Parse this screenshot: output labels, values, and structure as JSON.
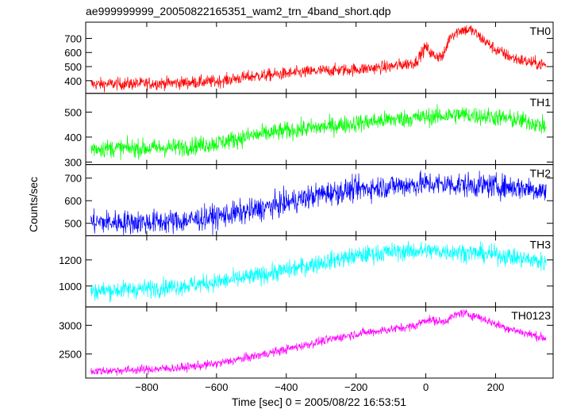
{
  "title": "ae999999999_20050822165351_wam2_trn_4band_short.qdp",
  "xlabel": "Time [sec] 0 = 2005/08/22 16:53:51",
  "ylabel": "Counts/sec",
  "chart_data": {
    "type": "line",
    "title": "ae999999999_20050822165351_wam2_trn_4band_short.qdp",
    "xlabel": "Time [sec] 0 = 2005/08/22 16:53:51",
    "ylabel": "Counts/sec",
    "xlim": [
      -975,
      365
    ],
    "xticks": [
      -800,
      -600,
      -400,
      -200,
      0,
      200
    ],
    "grid": false,
    "panels": [
      {
        "name": "TH0",
        "color": "#ff0000",
        "ylim": [
          310,
          815
        ],
        "yticks": [
          400,
          500,
          600,
          700
        ],
        "noise": 32,
        "x": [
          -960,
          -800,
          -700,
          -600,
          -500,
          -400,
          -300,
          -200,
          -100,
          -30,
          0,
          20,
          50,
          70,
          100,
          130,
          160,
          200,
          250,
          300,
          345
        ],
        "values": [
          375,
          380,
          385,
          395,
          430,
          450,
          470,
          480,
          500,
          530,
          640,
          580,
          570,
          720,
          760,
          760,
          700,
          620,
          560,
          530,
          510
        ]
      },
      {
        "name": "TH1",
        "color": "#00ff00",
        "ylim": [
          290,
          575
        ],
        "yticks": [
          300,
          400,
          500
        ],
        "noise": 26,
        "x": [
          -960,
          -800,
          -700,
          -600,
          -500,
          -400,
          -300,
          -200,
          -100,
          0,
          100,
          200,
          300,
          345
        ],
        "values": [
          355,
          355,
          360,
          375,
          405,
          425,
          440,
          455,
          470,
          480,
          490,
          480,
          460,
          440
        ]
      },
      {
        "name": "TH2",
        "color": "#0000ff",
        "ylim": [
          445,
          760
        ],
        "yticks": [
          500,
          600,
          700
        ],
        "noise": 38,
        "x": [
          -960,
          -800,
          -700,
          -600,
          -500,
          -400,
          -300,
          -200,
          -100,
          0,
          100,
          200,
          300,
          345
        ],
        "values": [
          505,
          505,
          510,
          530,
          555,
          590,
          630,
          650,
          665,
          675,
          670,
          665,
          655,
          640
        ]
      },
      {
        "name": "TH3",
        "color": "#00ffff",
        "ylim": [
          840,
          1385
        ],
        "yticks": [
          1000,
          1200
        ],
        "noise": 50,
        "x": [
          -960,
          -800,
          -700,
          -600,
          -500,
          -400,
          -300,
          -200,
          -100,
          0,
          100,
          200,
          300,
          345
        ],
        "values": [
          960,
          980,
          1000,
          1030,
          1070,
          1120,
          1180,
          1230,
          1260,
          1270,
          1260,
          1240,
          1200,
          1180
        ]
      },
      {
        "name": "TH0123",
        "color": "#ff00ff",
        "ylim": [
          2080,
          3320
        ],
        "yticks": [
          2500,
          3000
        ],
        "noise": 55,
        "x": [
          -960,
          -800,
          -700,
          -600,
          -500,
          -400,
          -300,
          -200,
          -100,
          -30,
          0,
          50,
          100,
          150,
          200,
          250,
          300,
          345
        ],
        "values": [
          2200,
          2230,
          2260,
          2330,
          2450,
          2580,
          2720,
          2850,
          2930,
          2990,
          3100,
          3060,
          3220,
          3150,
          3020,
          2920,
          2840,
          2770
        ]
      }
    ]
  }
}
